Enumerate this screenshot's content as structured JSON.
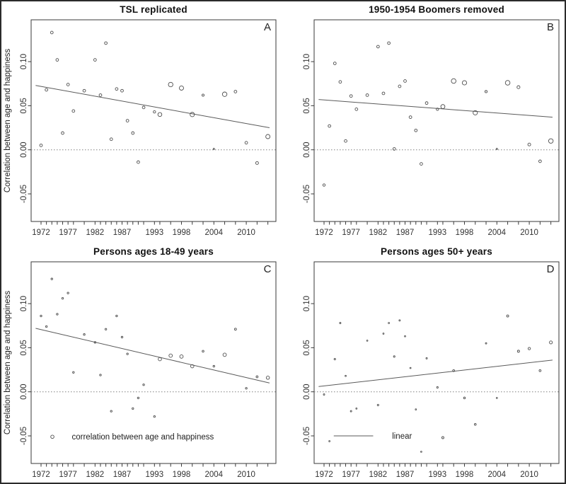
{
  "figure": {
    "background": "#ffffff",
    "outer_border_color": "#2b2b2b",
    "axis_color": "#3a3a3a",
    "point_color": "#4d4d4d",
    "line_color": "#5a5a5a",
    "zero_line_color": "#808080",
    "y_axis_title": "Correlation between age and happiness",
    "x_tick_labels": [
      "1972",
      "1977",
      "1982",
      "1987",
      "1993",
      "1998",
      "2004",
      "2010"
    ],
    "y_ticks": [
      {
        "value": -0.05,
        "label": "-0.05"
      },
      {
        "value": 0.0,
        "label": "0.00"
      },
      {
        "value": 0.05,
        "label": "0.05"
      },
      {
        "value": 0.1,
        "label": "0.10"
      }
    ]
  },
  "chart_data": {
    "type": "scatter",
    "grid": false,
    "xlim": [
      1970.2,
      2015.5
    ],
    "ylim": [
      -0.081,
      0.147
    ],
    "x_years": [
      1972,
      1973,
      1974,
      1975,
      1976,
      1977,
      1978,
      1980,
      1982,
      1983,
      1984,
      1985,
      1986,
      1987,
      1988,
      1989,
      1990,
      1991,
      1993,
      1994,
      1996,
      1998,
      2000,
      2002,
      2004,
      2006,
      2008,
      2010,
      2012,
      2014
    ],
    "panels": [
      {
        "panel_label": "A",
        "title": "TSL replicated",
        "ylabel": "Correlation between age and happiness",
        "values": [
          0.005,
          0.068,
          0.133,
          0.102,
          0.019,
          0.074,
          0.044,
          0.067,
          0.102,
          0.062,
          0.121,
          0.012,
          0.069,
          0.067,
          0.033,
          0.019,
          -0.014,
          0.048,
          0.043,
          0.04,
          0.074,
          0.07,
          0.04,
          0.062,
          0.001,
          0.063,
          0.066,
          0.008,
          -0.015,
          0.015
        ],
        "marker_sizes": [
          1.9,
          1.9,
          1.9,
          1.9,
          1.9,
          1.9,
          1.9,
          1.9,
          1.9,
          1.9,
          1.9,
          1.9,
          1.9,
          1.9,
          1.9,
          1.9,
          1.9,
          1.9,
          1.7,
          2.8,
          3.2,
          3.0,
          3.1,
          1.5,
          1.0,
          3.2,
          1.9,
          1.9,
          2.0,
          3.0
        ],
        "trend_line": {
          "x": [
            1971,
            2014.3
          ],
          "y": [
            0.073,
            0.025
          ]
        },
        "legend": null
      },
      {
        "panel_label": "B",
        "title": "1950-1954 Boomers removed",
        "ylabel": "",
        "values": [
          -0.04,
          0.027,
          0.098,
          0.077,
          0.01,
          0.061,
          0.046,
          0.062,
          0.117,
          0.064,
          0.121,
          0.001,
          0.072,
          0.078,
          0.037,
          0.022,
          -0.016,
          0.053,
          0.046,
          0.049,
          0.078,
          0.076,
          0.042,
          0.066,
          0.001,
          0.076,
          0.071,
          0.006,
          -0.013,
          0.01
        ],
        "marker_sizes": [
          1.7,
          1.9,
          1.9,
          1.9,
          1.9,
          1.9,
          1.9,
          1.9,
          1.9,
          1.9,
          1.9,
          1.9,
          1.9,
          1.9,
          1.9,
          1.9,
          1.9,
          1.9,
          1.7,
          2.9,
          3.3,
          3.1,
          3.1,
          1.6,
          1.0,
          3.3,
          2.1,
          2.0,
          1.9,
          3.2
        ],
        "trend_line": {
          "x": [
            1971,
            2014.3
          ],
          "y": [
            0.057,
            0.037
          ]
        },
        "legend": null
      },
      {
        "panel_label": "C",
        "title": "Persons ages 18-49 years",
        "ylabel": "Correlation between age and happiness",
        "values": [
          0.086,
          0.074,
          0.128,
          0.088,
          0.106,
          0.112,
          0.022,
          0.065,
          0.056,
          0.019,
          0.071,
          -0.022,
          0.086,
          0.062,
          0.043,
          -0.019,
          -0.007,
          0.008,
          -0.028,
          0.037,
          0.041,
          0.04,
          0.029,
          0.046,
          0.029,
          0.042,
          0.071,
          0.004,
          0.017,
          0.016
        ],
        "marker_sizes": [
          1.2,
          1.2,
          1.2,
          1.2,
          1.2,
          1.2,
          1.2,
          1.2,
          1.2,
          1.2,
          1.2,
          1.2,
          1.2,
          1.2,
          1.2,
          1.2,
          1.2,
          1.2,
          1.2,
          2.3,
          2.4,
          2.4,
          2.3,
          1.3,
          1.2,
          2.4,
          1.4,
          1.2,
          1.4,
          2.3
        ],
        "trend_line": {
          "x": [
            1971,
            2014.3
          ],
          "y": [
            0.072,
            0.01
          ]
        },
        "legend": {
          "marker": "point",
          "label": "correlation between age and happiness",
          "marker_year": 1974.1,
          "value": -0.051,
          "marker_size": 2.3,
          "label_year": 1977.7
        }
      },
      {
        "panel_label": "D",
        "title": "Persons ages 50+ years",
        "ylabel": "",
        "values": [
          -0.003,
          -0.056,
          0.037,
          0.078,
          0.018,
          -0.022,
          -0.019,
          0.058,
          -0.015,
          0.066,
          0.078,
          0.04,
          0.081,
          0.063,
          0.027,
          -0.02,
          -0.068,
          0.038,
          0.005,
          -0.052,
          0.024,
          -0.007,
          -0.037,
          0.055,
          -0.007,
          0.086,
          0.046,
          0.049,
          0.024,
          0.056
        ],
        "marker_sizes": [
          1.0,
          0.9,
          1.1,
          1.0,
          0.9,
          1.0,
          0.9,
          0.9,
          1.1,
          0.9,
          0.9,
          1.1,
          1.0,
          0.9,
          0.9,
          0.9,
          0.9,
          1.0,
          1.1,
          1.5,
          1.4,
          1.3,
          1.3,
          1.0,
          0.9,
          1.5,
          1.5,
          1.7,
          1.4,
          2.1
        ],
        "trend_line": {
          "x": [
            1971,
            2014.3
          ],
          "y": [
            0.006,
            0.036
          ]
        },
        "legend": {
          "marker": "line",
          "label": "linear",
          "line_year_start": 1973.8,
          "line_year_end": 1981.1,
          "value": -0.05,
          "label_year": 1984.6
        }
      }
    ]
  }
}
